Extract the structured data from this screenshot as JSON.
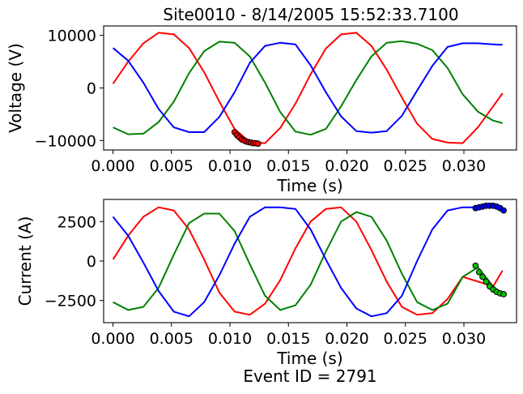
{
  "chart_data": [
    {
      "type": "line",
      "title": "Site0010 - 8/14/2005 15:52:33.7100",
      "xlabel": "Time (s)",
      "ylabel": "Voltage (V)",
      "xlim": [
        -0.0008,
        0.0345
      ],
      "ylim": [
        -11800,
        11800
      ],
      "xticks": [
        0.0,
        0.005,
        0.01,
        0.015,
        0.02,
        0.025,
        0.03
      ],
      "xtick_labels": [
        "0.000",
        "0.005",
        "0.010",
        "0.015",
        "0.020",
        "0.025",
        "0.030"
      ],
      "yticks": [
        10000,
        0,
        -10000
      ],
      "ytick_labels": [
        "10000",
        "0",
        "−10000"
      ],
      "grid": false,
      "series": [
        {
          "color": "#ff0000",
          "x": [
            0.0,
            0.0013,
            0.0026,
            0.0039,
            0.0052,
            0.0065,
            0.0078,
            0.0091,
            0.0104,
            0.0117,
            0.013,
            0.0143,
            0.0156,
            0.0169,
            0.0182,
            0.0195,
            0.0208,
            0.0221,
            0.0234,
            0.0247,
            0.026,
            0.0273,
            0.0286,
            0.0299,
            0.0312,
            0.0325,
            0.0333
          ],
          "y": [
            800,
            5000,
            8500,
            10500,
            10200,
            7600,
            3000,
            -2600,
            -7800,
            -10300,
            -10500,
            -7600,
            -3000,
            2600,
            7500,
            10200,
            10500,
            8000,
            3500,
            -1800,
            -6800,
            -9700,
            -10400,
            -10500,
            -7500,
            -3500,
            -1000
          ]
        },
        {
          "color": "#008000",
          "x": [
            0.0,
            0.0013,
            0.0026,
            0.0039,
            0.0052,
            0.0065,
            0.0078,
            0.0091,
            0.0104,
            0.0117,
            0.013,
            0.0143,
            0.0156,
            0.0169,
            0.0182,
            0.0195,
            0.0208,
            0.0221,
            0.0234,
            0.0247,
            0.026,
            0.0273,
            0.0286,
            0.0299,
            0.0312,
            0.0325,
            0.0333
          ],
          "y": [
            -7500,
            -8800,
            -8700,
            -6500,
            -2600,
            2800,
            7000,
            8800,
            8600,
            6000,
            1000,
            -4600,
            -8300,
            -8900,
            -7800,
            -3500,
            1500,
            6000,
            8600,
            8900,
            8400,
            7200,
            3800,
            -1200,
            -4500,
            -6200,
            -6700
          ]
        },
        {
          "color": "#0000ff",
          "x": [
            0.0,
            0.0013,
            0.0026,
            0.0039,
            0.0052,
            0.0065,
            0.0078,
            0.0091,
            0.0104,
            0.0117,
            0.013,
            0.0143,
            0.0156,
            0.0169,
            0.0182,
            0.0195,
            0.0208,
            0.0221,
            0.0234,
            0.0247,
            0.026,
            0.0273,
            0.0286,
            0.0299,
            0.0312,
            0.0325,
            0.0333
          ],
          "y": [
            7600,
            5200,
            1000,
            -4000,
            -7500,
            -8400,
            -8400,
            -5500,
            -800,
            4800,
            8000,
            8600,
            8300,
            4300,
            -800,
            -5400,
            -8200,
            -8500,
            -8200,
            -5300,
            -500,
            4200,
            7800,
            8500,
            8500,
            8300,
            8200
          ]
        }
      ],
      "marker_series": [
        {
          "color": "#ff0000",
          "x": [
            0.0104,
            0.0106,
            0.0108,
            0.011,
            0.0112,
            0.0114,
            0.0116,
            0.0118,
            0.012,
            0.0122,
            0.0124
          ],
          "y": [
            -8400,
            -9000,
            -9400,
            -9800,
            -10000,
            -10200,
            -10300,
            -10400,
            -10500,
            -10500,
            -10600
          ]
        }
      ]
    },
    {
      "type": "line",
      "title": "",
      "xlabel": "Time (s)",
      "ylabel": "Current (A)",
      "xlim": [
        -0.0008,
        0.0345
      ],
      "ylim": [
        -3900,
        3900
      ],
      "xticks": [
        0.0,
        0.005,
        0.01,
        0.015,
        0.02,
        0.025,
        0.03
      ],
      "xtick_labels": [
        "0.000",
        "0.005",
        "0.010",
        "0.015",
        "0.020",
        "0.025",
        "0.030"
      ],
      "yticks": [
        2500,
        0,
        -2500
      ],
      "ytick_labels": [
        "2500",
        "0",
        "−2500"
      ],
      "grid": false,
      "series": [
        {
          "color": "#ff0000",
          "x": [
            0.0,
            0.0013,
            0.0026,
            0.0039,
            0.0052,
            0.0065,
            0.0078,
            0.0091,
            0.0104,
            0.0117,
            0.013,
            0.0143,
            0.0156,
            0.0169,
            0.0182,
            0.0195,
            0.0208,
            0.0221,
            0.0234,
            0.0247,
            0.026,
            0.0273,
            0.0286,
            0.0299,
            0.0312,
            0.0325,
            0.0333
          ],
          "y": [
            100,
            1600,
            2800,
            3400,
            3200,
            2000,
            100,
            -2000,
            -3200,
            -3400,
            -2700,
            -1200,
            800,
            2500,
            3300,
            3400,
            2500,
            700,
            -1300,
            -2900,
            -3400,
            -3300,
            -2400,
            -1000,
            -1300,
            -1600,
            -600
          ]
        },
        {
          "color": "#008000",
          "x": [
            0.0,
            0.0013,
            0.0026,
            0.0039,
            0.0052,
            0.0065,
            0.0078,
            0.0091,
            0.0104,
            0.0117,
            0.013,
            0.0143,
            0.0156,
            0.0169,
            0.0182,
            0.0195,
            0.0208,
            0.0221,
            0.0234,
            0.0247,
            0.026,
            0.0273,
            0.0286,
            0.0299,
            0.0312,
            0.0325,
            0.0333
          ],
          "y": [
            -2600,
            -3100,
            -2900,
            -1700,
            400,
            2400,
            3000,
            3000,
            1900,
            -200,
            -2200,
            -3100,
            -2800,
            -1500,
            600,
            2500,
            3100,
            2800,
            1300,
            -800,
            -2600,
            -3100,
            -2700,
            -1000,
            -400,
            -1600,
            -2100
          ]
        },
        {
          "color": "#0000ff",
          "x": [
            0.0,
            0.0013,
            0.0026,
            0.0039,
            0.0052,
            0.0065,
            0.0078,
            0.0091,
            0.0104,
            0.0117,
            0.013,
            0.0143,
            0.0156,
            0.0169,
            0.0182,
            0.0195,
            0.0208,
            0.0221,
            0.0234,
            0.0247,
            0.026,
            0.0273,
            0.0286,
            0.0299,
            0.0312,
            0.0325,
            0.0333
          ],
          "y": [
            2800,
            1600,
            -100,
            -1900,
            -3200,
            -3500,
            -2600,
            -900,
            1100,
            2800,
            3400,
            3400,
            3300,
            2000,
            100,
            -1700,
            -3000,
            -3500,
            -3300,
            -2200,
            0,
            2000,
            3200,
            3400,
            3400,
            3450,
            3300
          ]
        }
      ],
      "marker_series": [
        {
          "color": "#0000ff",
          "x": [
            0.031,
            0.0313,
            0.0316,
            0.0319,
            0.0322,
            0.0325,
            0.0328,
            0.0331,
            0.0334
          ],
          "y": [
            3350,
            3400,
            3450,
            3500,
            3500,
            3500,
            3450,
            3350,
            3200
          ]
        },
        {
          "color": "#00c000",
          "x": [
            0.031,
            0.0313,
            0.0316,
            0.0319,
            0.0322,
            0.0325,
            0.0328,
            0.0331,
            0.0334
          ],
          "y": [
            -300,
            -700,
            -1000,
            -1300,
            -1600,
            -1800,
            -1950,
            -2050,
            -2100
          ]
        }
      ]
    }
  ],
  "footer": {
    "event_label": "Event ID = 2791"
  }
}
